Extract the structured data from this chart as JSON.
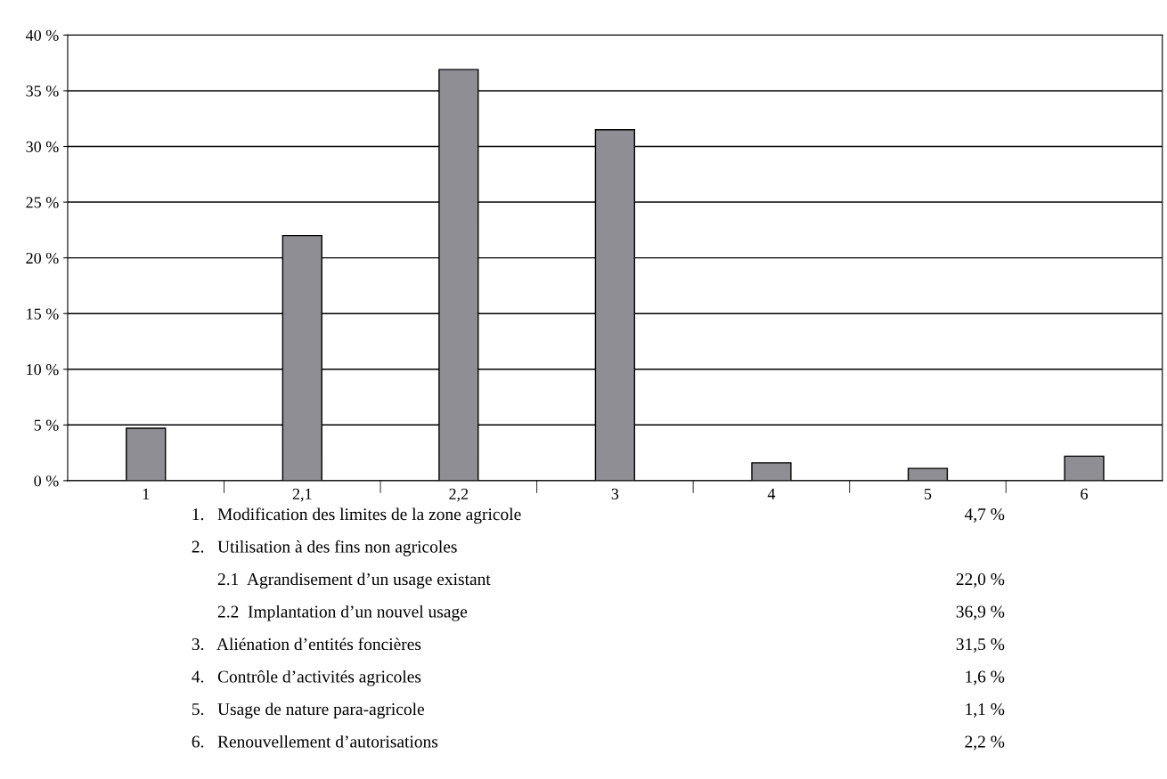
{
  "chart_data": {
    "type": "bar",
    "categories": [
      "1",
      "2,1",
      "2,2",
      "3",
      "4",
      "5",
      "6"
    ],
    "values": [
      4.7,
      22.0,
      36.9,
      31.5,
      1.6,
      1.1,
      2.2
    ],
    "color": "#8e8e94",
    "ylim": [
      0,
      40
    ],
    "yticks": [
      {
        "value": 0,
        "label": "0 %"
      },
      {
        "value": 5,
        "label": "5 %"
      },
      {
        "value": 10,
        "label": "10 %"
      },
      {
        "value": 15,
        "label": "15 %"
      },
      {
        "value": 20,
        "label": "20 %"
      },
      {
        "value": 25,
        "label": "25 %"
      },
      {
        "value": 30,
        "label": "30 %"
      },
      {
        "value": 35,
        "label": "35 %"
      },
      {
        "value": 40,
        "label": "40 %"
      }
    ],
    "grid": "y",
    "annotations": [
      "1.   Modification des limites de la zone agricole\t4,7 %",
      "2.   Utilisation à des fins non agricoles",
      "      2.1  Agrandisement d’un usage existant\t22,0 %",
      "      2.2  Implantation d’un nouvel usage\t36,9 %",
      "3.   Aliénation d’entités foncières\t31,5 %",
      "4.   Contrôle d’activités agricoles\t1,6 %",
      "5.   Usage de nature para-agricole\t1,1 %",
      "6.   Renouvellement d’autorisations\t2,2 %"
    ]
  }
}
